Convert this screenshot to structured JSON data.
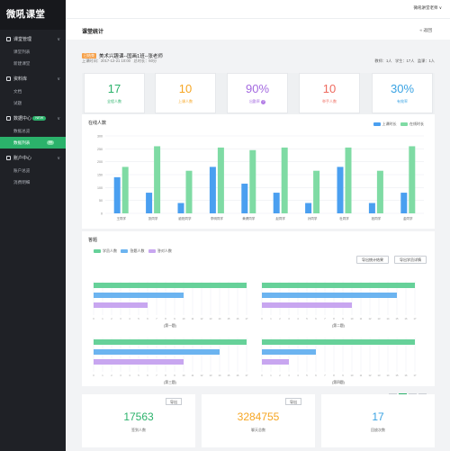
{
  "app": {
    "brand": "微吼课堂"
  },
  "sidebar": {
    "groups": [
      {
        "label": "课堂管理",
        "items": [
          {
            "label": "课堂列表"
          },
          {
            "label": "新建课堂"
          }
        ]
      },
      {
        "label": "资料库",
        "items": [
          {
            "label": "文档"
          },
          {
            "label": "试题"
          }
        ]
      },
      {
        "label": "数据中心",
        "badge": "NEW",
        "items": [
          {
            "label": "数据总览"
          },
          {
            "label": "数据列表",
            "badge": "99"
          }
        ]
      },
      {
        "label": "账户中心",
        "items": [
          {
            "label": "账户总览"
          },
          {
            "label": "消费明细"
          }
        ]
      }
    ]
  },
  "topbar": {
    "user": "微吼讲堂老师 ∨"
  },
  "page": {
    "title": "课堂统计",
    "back": "« 返回"
  },
  "lesson": {
    "tag": "已结束",
    "name": "美术兴趣课--国画1班--张老师",
    "start_label": "上课时间：2017-12-21 10:00",
    "duration_label": "总时长：60分",
    "teachers": "教师：1人",
    "students": "学生：17人",
    "auditors": "监课：1人"
  },
  "stat_cards": [
    {
      "value": "17",
      "label": "全程人数",
      "color": "#2bb26b"
    },
    {
      "value": "10",
      "label": "上课人数",
      "color": "#f6a623"
    },
    {
      "value": "90%",
      "label": "出勤率",
      "color": "#a46ae0",
      "has_help": true
    },
    {
      "value": "10",
      "label": "举手人数",
      "color": "#ee6a5e"
    },
    {
      "value": "30%",
      "label": "有效率",
      "color": "#3aa3e3"
    }
  ],
  "online_chart": {
    "title": "在线人数",
    "legend": [
      "上课时长",
      "在线时长"
    ],
    "colors": [
      "#4a9ff0",
      "#7fdba4"
    ],
    "y_ticks": [
      "300",
      "250",
      "200",
      "150",
      "100",
      "50",
      "0"
    ]
  },
  "chart_data": [
    {
      "type": "bar",
      "title": "在线人数",
      "categories": [
        "王同学",
        "张同学",
        "欧阳同学",
        "李明同学",
        "黄健同学",
        "赵同学",
        "孙同学",
        "杜同学",
        "钱同学",
        "金同学"
      ],
      "series": [
        {
          "name": "上课时长",
          "values": [
            140,
            80,
            40,
            180,
            115,
            80,
            40,
            180,
            40,
            80
          ]
        },
        {
          "name": "在线时长",
          "values": [
            180,
            260,
            165,
            255,
            245,
            255,
            165,
            255,
            165,
            260
          ]
        }
      ],
      "ylim": [
        0,
        300
      ]
    },
    {
      "type": "bar",
      "title": "答题",
      "orientation": "horizontal",
      "subplots": [
        {
          "caption": "(第一题)",
          "values": [
            17,
            10,
            6
          ]
        },
        {
          "caption": "(第二题)",
          "values": [
            17,
            15,
            10
          ]
        },
        {
          "caption": "(第三题)",
          "values": [
            17,
            14,
            10
          ]
        },
        {
          "caption": "(第四题)",
          "values": [
            17,
            6,
            3
          ]
        }
      ],
      "series": [
        {
          "name": "学员人数"
        },
        {
          "name": "答题人数"
        },
        {
          "name": "答对人数"
        }
      ],
      "colors": [
        "#66d199",
        "#6cb4f0",
        "#c8a6f0"
      ],
      "xlim": [
        0,
        17
      ]
    }
  ],
  "quiz": {
    "title": "答题",
    "legend": [
      "学员人数",
      "答题人数",
      "答对人数"
    ],
    "export_btn": "导出统计结果",
    "export_detail_btn": "导出学员详情",
    "captions": [
      "(第一题)",
      "(第二题)",
      "(第三题)",
      "(第四题)"
    ]
  },
  "pager": {
    "prev": "‹",
    "pages": [
      "1",
      "2",
      "3"
    ],
    "next": "›"
  },
  "bottom_cards": [
    {
      "value": "17563",
      "label": "签到人数",
      "color": "#2bb26b",
      "has_export": true
    },
    {
      "value": "3284755",
      "label": "聊天总数",
      "color": "#f6a623",
      "has_export": true
    },
    {
      "value": "17",
      "label": "回放次数",
      "color": "#3aa3e3",
      "has_export": false
    }
  ],
  "export_label": "导出"
}
